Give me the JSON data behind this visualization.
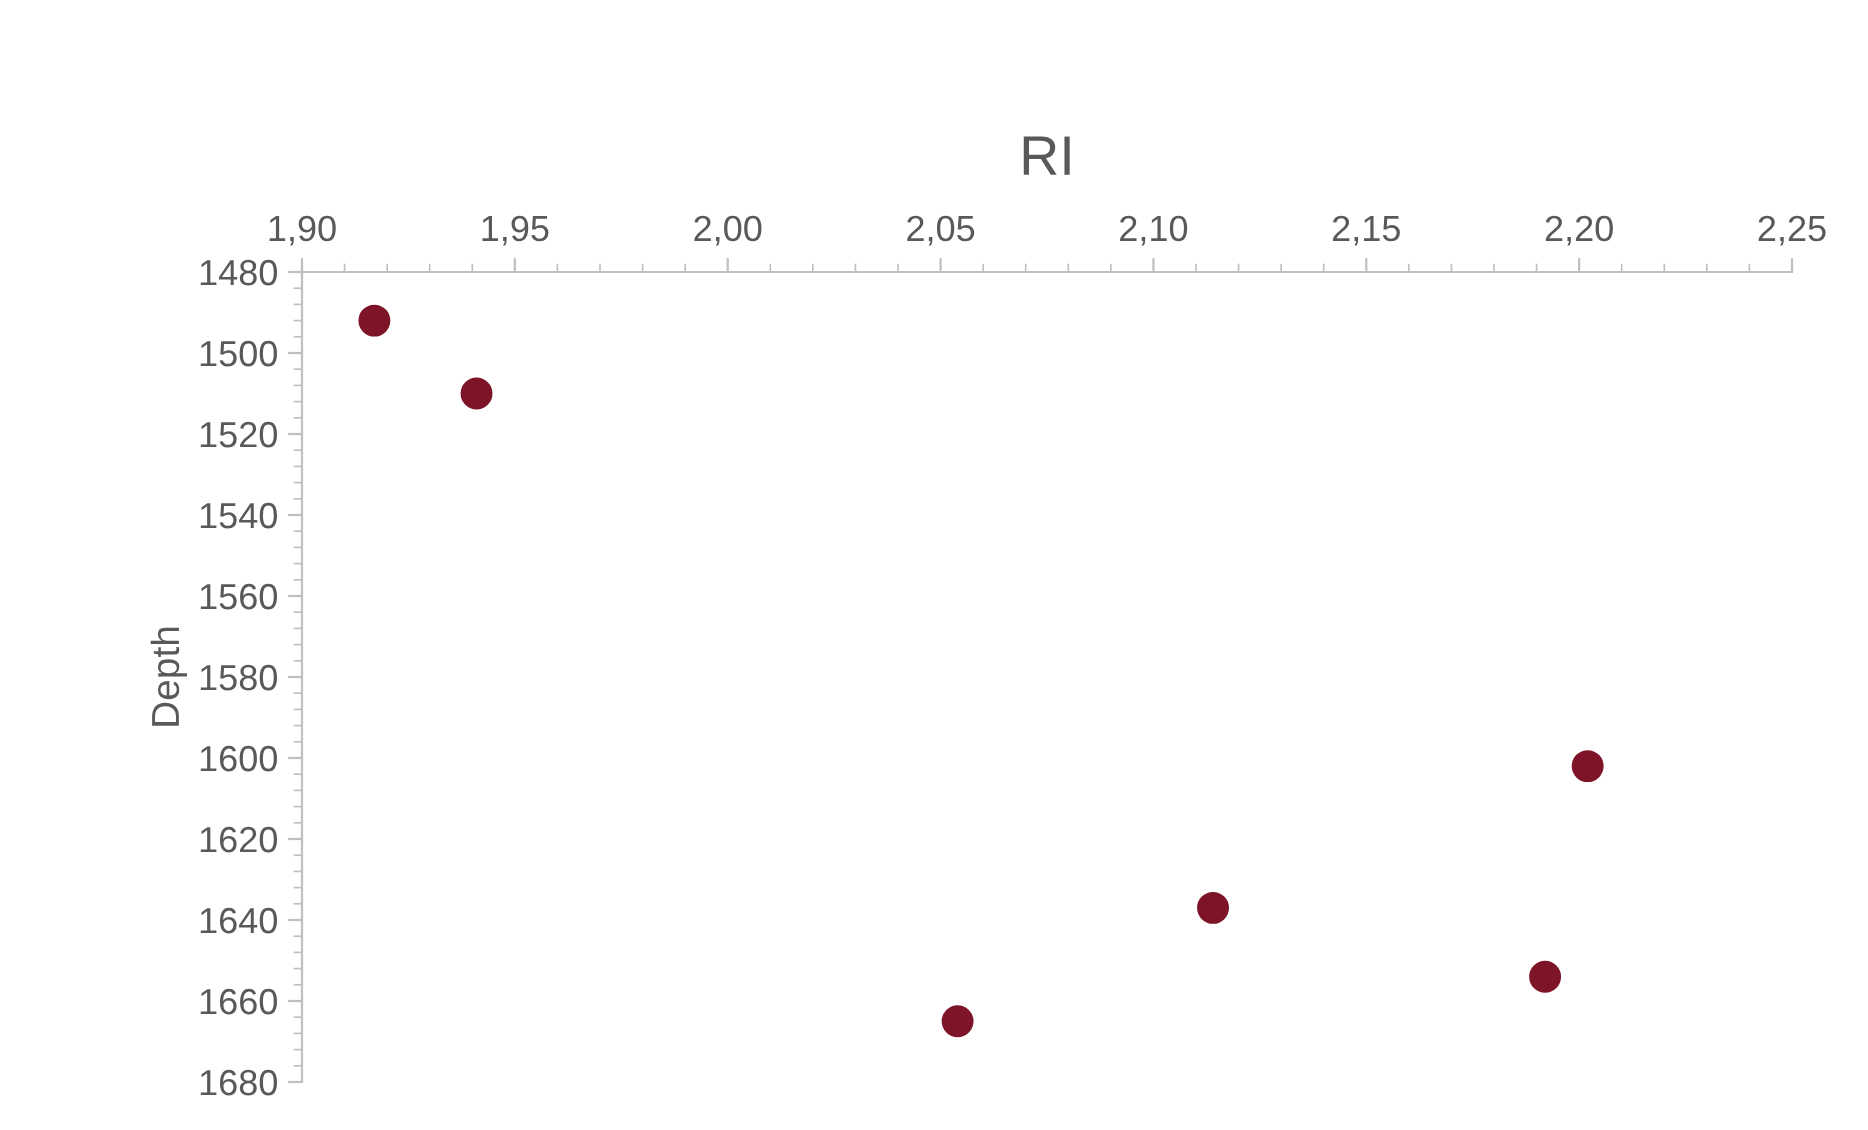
{
  "chart_data": {
    "type": "scatter",
    "title": "RI",
    "ylabel": "Depth",
    "x": [
      1.917,
      1.941,
      2.054,
      2.114,
      2.192,
      2.202
    ],
    "values": [
      1492,
      1510,
      1665,
      1637,
      1654,
      1602
    ],
    "color": "#7e1428",
    "marker": "circle",
    "grid": false,
    "legend": false,
    "xlim": [
      1.9,
      2.25
    ],
    "ylim": [
      1680,
      1480
    ],
    "xticks": [
      {
        "value": 1.9,
        "label": "1,90"
      },
      {
        "value": 1.95,
        "label": "1,95"
      },
      {
        "value": 2.0,
        "label": "2,00"
      },
      {
        "value": 2.05,
        "label": "2,05"
      },
      {
        "value": 2.1,
        "label": "2,10"
      },
      {
        "value": 2.15,
        "label": "2,15"
      },
      {
        "value": 2.2,
        "label": "2,20"
      },
      {
        "value": 2.25,
        "label": "2,25"
      }
    ],
    "yticks": [
      1480,
      1500,
      1520,
      1540,
      1560,
      1580,
      1600,
      1620,
      1640,
      1660,
      1680
    ]
  }
}
